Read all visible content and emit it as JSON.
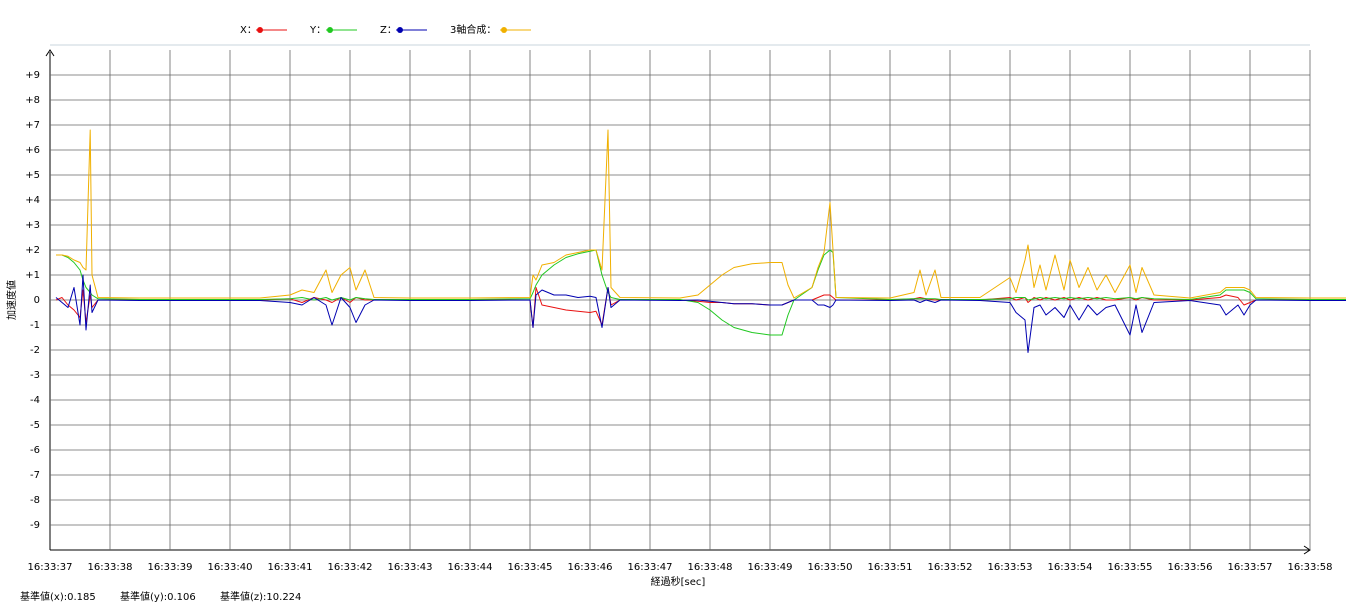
{
  "chart_data": {
    "type": "line",
    "ylabel": "加速度値",
    "xlabel": "経過秒[sec]",
    "footer": [
      "基準値(x):0.185",
      "基準値(y):0.106",
      "基準値(z):10.224"
    ],
    "xlim": [
      0,
      21
    ],
    "ylim": [
      -10,
      10
    ],
    "xticks": [
      {
        "value": 0,
        "label": "16:33:37"
      },
      {
        "value": 1,
        "label": "16:33:38"
      },
      {
        "value": 2,
        "label": "16:33:39"
      },
      {
        "value": 3,
        "label": "16:33:40"
      },
      {
        "value": 4,
        "label": "16:33:41"
      },
      {
        "value": 5,
        "label": "16:33:42"
      },
      {
        "value": 6,
        "label": "16:33:43"
      },
      {
        "value": 7,
        "label": "16:33:44"
      },
      {
        "value": 8,
        "label": "16:33:45"
      },
      {
        "value": 9,
        "label": "16:33:46"
      },
      {
        "value": 10,
        "label": "16:33:47"
      },
      {
        "value": 11,
        "label": "16:33:48"
      },
      {
        "value": 12,
        "label": "16:33:49"
      },
      {
        "value": 13,
        "label": "16:33:50"
      },
      {
        "value": 14,
        "label": "16:33:51"
      },
      {
        "value": 15,
        "label": "16:33:52"
      },
      {
        "value": 16,
        "label": "16:33:53"
      },
      {
        "value": 17,
        "label": "16:33:54"
      },
      {
        "value": 18,
        "label": "16:33:55"
      },
      {
        "value": 19,
        "label": "16:33:56"
      },
      {
        "value": 20,
        "label": "16:33:57"
      },
      {
        "value": 21,
        "label": "16:33:58"
      }
    ],
    "yticks": [
      {
        "value": 9,
        "label": "+9"
      },
      {
        "value": 8,
        "label": "+8"
      },
      {
        "value": 7,
        "label": "+7"
      },
      {
        "value": 6,
        "label": "+6"
      },
      {
        "value": 5,
        "label": "+5"
      },
      {
        "value": 4,
        "label": "+4"
      },
      {
        "value": 3,
        "label": "+3"
      },
      {
        "value": 2,
        "label": "+2"
      },
      {
        "value": 1,
        "label": "+1"
      },
      0,
      -1,
      -2,
      -3,
      -4,
      -5,
      -6,
      -7,
      -8,
      -9
    ],
    "grid": true,
    "x": [
      0.1,
      0.2,
      0.3,
      0.4,
      0.5,
      0.55,
      0.6,
      0.67,
      0.7,
      0.8,
      1.5,
      2.5,
      3.5,
      4.0,
      4.2,
      4.4,
      4.6,
      4.7,
      4.85,
      5.0,
      5.1,
      5.25,
      5.4,
      6.0,
      7.0,
      8.0,
      8.05,
      8.1,
      8.2,
      8.4,
      8.6,
      8.8,
      9.0,
      9.1,
      9.2,
      9.3,
      9.35,
      9.5,
      10.5,
      10.8,
      11.0,
      11.2,
      11.4,
      11.7,
      12.0,
      12.2,
      12.3,
      12.4,
      12.7,
      12.8,
      12.9,
      13.0,
      13.05,
      13.1,
      14.0,
      14.4,
      14.5,
      14.6,
      14.75,
      14.85,
      15.5,
      16.0,
      16.1,
      16.25,
      16.3,
      16.4,
      16.5,
      16.6,
      16.75,
      16.9,
      17.0,
      17.15,
      17.3,
      17.45,
      17.6,
      17.75,
      18.0,
      18.1,
      18.2,
      18.4,
      19.0,
      19.5,
      19.6,
      19.8,
      19.9,
      20.0,
      20.1,
      21.0,
      21.6
    ],
    "series": [
      {
        "name": "X：",
        "color": "#e81010",
        "values": [
          0,
          0.1,
          -0.2,
          -0.4,
          -0.7,
          0.4,
          -0.9,
          0.2,
          -0.3,
          0,
          0,
          0,
          0,
          0.05,
          -0.1,
          0.1,
          0,
          -0.1,
          0.1,
          -0.1,
          0.1,
          0,
          0,
          0,
          0,
          0,
          -1.1,
          0.5,
          -0.2,
          -0.3,
          -0.4,
          -0.45,
          -0.5,
          -0.45,
          -1.0,
          0.5,
          -0.2,
          0,
          0,
          -0.05,
          -0.1,
          -0.1,
          -0.15,
          -0.15,
          -0.2,
          -0.2,
          -0.1,
          0,
          0,
          0.1,
          0.2,
          0.2,
          0.1,
          0,
          0,
          0.05,
          0.1,
          0.05,
          0,
          0,
          0,
          0.1,
          0,
          0.1,
          -0.1,
          0.1,
          0,
          0.1,
          0,
          0.1,
          0,
          0.1,
          0,
          0.1,
          0,
          0,
          0.1,
          0,
          0.1,
          0,
          0,
          0.1,
          0.2,
          0.1,
          -0.2,
          -0.1,
          0,
          0,
          0
        ]
      },
      {
        "name": "Y：",
        "color": "#20c820",
        "values": [
          1.8,
          1.8,
          1.7,
          1.5,
          1.2,
          0.8,
          0.5,
          0.3,
          0.2,
          0.05,
          0.02,
          0.02,
          0.02,
          0.05,
          0.1,
          0,
          0.1,
          0,
          0.1,
          0,
          0.1,
          0.05,
          0.02,
          0.02,
          0.02,
          0.05,
          0.3,
          0.6,
          1.0,
          1.4,
          1.7,
          1.85,
          1.95,
          2.0,
          1.0,
          0.3,
          0.1,
          0.02,
          0.02,
          -0.1,
          -0.4,
          -0.8,
          -1.1,
          -1.3,
          -1.4,
          -1.4,
          -0.6,
          0,
          0.5,
          1.2,
          1.8,
          2.0,
          1.9,
          0.1,
          0.02,
          0.05,
          0.05,
          0.05,
          0.05,
          0.02,
          0.02,
          0.05,
          0.1,
          0.1,
          0,
          0.05,
          0.1,
          0.05,
          0.1,
          0.05,
          0.1,
          0.05,
          0.1,
          0.05,
          0.1,
          0.05,
          0.1,
          0.05,
          0.1,
          0.05,
          0.02,
          0.2,
          0.4,
          0.4,
          0.4,
          0.3,
          0.05,
          0.02,
          0.02
        ]
      },
      {
        "name": "Z：",
        "color": "#0000b0",
        "values": [
          0.1,
          -0.1,
          -0.3,
          0.5,
          -1.0,
          1.0,
          -1.2,
          0.6,
          -0.5,
          0,
          -0.02,
          -0.02,
          -0.02,
          -0.1,
          -0.2,
          0.1,
          -0.2,
          -1.0,
          0.1,
          -0.3,
          -0.9,
          -0.2,
          0,
          -0.02,
          -0.02,
          0,
          -1.1,
          0.2,
          0.4,
          0.2,
          0.2,
          0.1,
          0.15,
          0.1,
          -1.1,
          0.5,
          -0.3,
          0,
          -0.02,
          0,
          -0.05,
          -0.1,
          -0.15,
          -0.15,
          -0.2,
          -0.2,
          -0.1,
          0,
          0,
          -0.2,
          -0.2,
          -0.3,
          -0.2,
          0,
          -0.02,
          0,
          -0.1,
          0,
          -0.1,
          0,
          -0.02,
          -0.1,
          -0.5,
          -0.8,
          -2.1,
          -0.3,
          -0.2,
          -0.6,
          -0.3,
          -0.7,
          -0.2,
          -0.8,
          -0.2,
          -0.6,
          -0.3,
          -0.2,
          -1.4,
          -0.2,
          -1.3,
          -0.1,
          -0.02,
          -0.2,
          -0.6,
          -0.2,
          -0.6,
          -0.2,
          0,
          -0.02,
          -0.02
        ]
      },
      {
        "name": "3軸合成：",
        "color": "#f0b000",
        "values": [
          1.8,
          1.8,
          1.75,
          1.6,
          1.5,
          1.3,
          1.2,
          6.8,
          1.0,
          0.1,
          0.08,
          0.08,
          0.08,
          0.2,
          0.4,
          0.3,
          1.2,
          0.3,
          1.0,
          1.3,
          0.4,
          1.2,
          0.1,
          0.08,
          0.08,
          0.1,
          1.0,
          0.8,
          1.4,
          1.5,
          1.8,
          1.9,
          2.0,
          2.0,
          1.2,
          6.8,
          0.5,
          0.1,
          0.08,
          0.2,
          0.6,
          1.0,
          1.3,
          1.45,
          1.5,
          1.5,
          0.6,
          0.08,
          0.5,
          1.3,
          1.9,
          3.9,
          2.0,
          0.1,
          0.08,
          0.3,
          1.2,
          0.2,
          1.2,
          0.1,
          0.1,
          0.9,
          0.3,
          1.6,
          2.2,
          0.5,
          1.4,
          0.4,
          1.8,
          0.4,
          1.6,
          0.5,
          1.3,
          0.4,
          1.0,
          0.3,
          1.4,
          0.3,
          1.3,
          0.2,
          0.08,
          0.3,
          0.5,
          0.5,
          0.5,
          0.4,
          0.1,
          0.08,
          0.08
        ]
      }
    ]
  }
}
